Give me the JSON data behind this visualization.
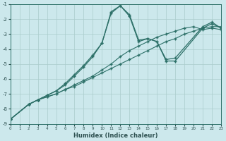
{
  "xlabel": "Humidex (Indice chaleur)",
  "ylabel": "",
  "bg_color": "#cce8ec",
  "grid_color": "#aacccc",
  "line_color": "#2d7068",
  "xlim": [
    0,
    23
  ],
  "ylim": [
    -9,
    -1
  ],
  "xticks": [
    0,
    1,
    2,
    3,
    4,
    5,
    6,
    7,
    8,
    9,
    10,
    11,
    12,
    13,
    14,
    15,
    16,
    17,
    18,
    19,
    20,
    21,
    22,
    23
  ],
  "yticks": [
    -9,
    -8,
    -7,
    -6,
    -5,
    -4,
    -3,
    -2,
    -1
  ],
  "line1_x": [
    0,
    2,
    3,
    4,
    5,
    6,
    7,
    8,
    9,
    10,
    11,
    12,
    13,
    14,
    15,
    16,
    17,
    18,
    19,
    20,
    21,
    22,
    23
  ],
  "line1_y": [
    -8.7,
    -7.7,
    -7.4,
    -7.2,
    -7.0,
    -6.7,
    -6.5,
    -6.2,
    -5.9,
    -5.6,
    -5.3,
    -5.0,
    -4.7,
    -4.4,
    -4.1,
    -3.8,
    -3.5,
    -3.3,
    -3.0,
    -2.8,
    -2.6,
    -2.5,
    -2.5
  ],
  "line2_x": [
    0,
    2,
    3,
    4,
    5,
    6,
    7,
    8,
    9,
    10,
    11,
    12,
    13,
    14,
    15,
    16,
    17,
    18,
    19,
    20,
    21,
    22,
    23
  ],
  "line2_y": [
    -8.7,
    -7.7,
    -7.4,
    -7.2,
    -7.0,
    -6.7,
    -6.4,
    -6.1,
    -5.8,
    -5.4,
    -5.0,
    -4.5,
    -4.1,
    -3.8,
    -3.5,
    -3.2,
    -3.0,
    -2.8,
    -2.6,
    -2.5,
    -2.7,
    -2.6,
    -2.7
  ],
  "line3_x": [
    0,
    2,
    3,
    4,
    5,
    6,
    7,
    8,
    9,
    10,
    11,
    12,
    13,
    14,
    15,
    16,
    17,
    18,
    21,
    22,
    23
  ],
  "line3_y": [
    -8.7,
    -7.7,
    -7.4,
    -7.1,
    -6.8,
    -6.4,
    -5.8,
    -5.2,
    -4.5,
    -3.6,
    -1.6,
    -1.1,
    -1.8,
    -3.5,
    -3.3,
    -3.5,
    -4.8,
    -4.8,
    -2.6,
    -2.3,
    -2.6
  ],
  "line4_x": [
    0,
    2,
    3,
    4,
    5,
    6,
    7,
    8,
    9,
    10,
    11,
    12,
    13,
    14,
    15,
    16,
    17,
    18,
    21,
    22,
    23
  ],
  "line4_y": [
    -8.7,
    -7.7,
    -7.4,
    -7.1,
    -6.8,
    -6.3,
    -5.7,
    -5.1,
    -4.4,
    -3.6,
    -1.5,
    -1.1,
    -1.7,
    -3.4,
    -3.3,
    -3.5,
    -4.7,
    -4.6,
    -2.5,
    -2.2,
    -2.6
  ]
}
